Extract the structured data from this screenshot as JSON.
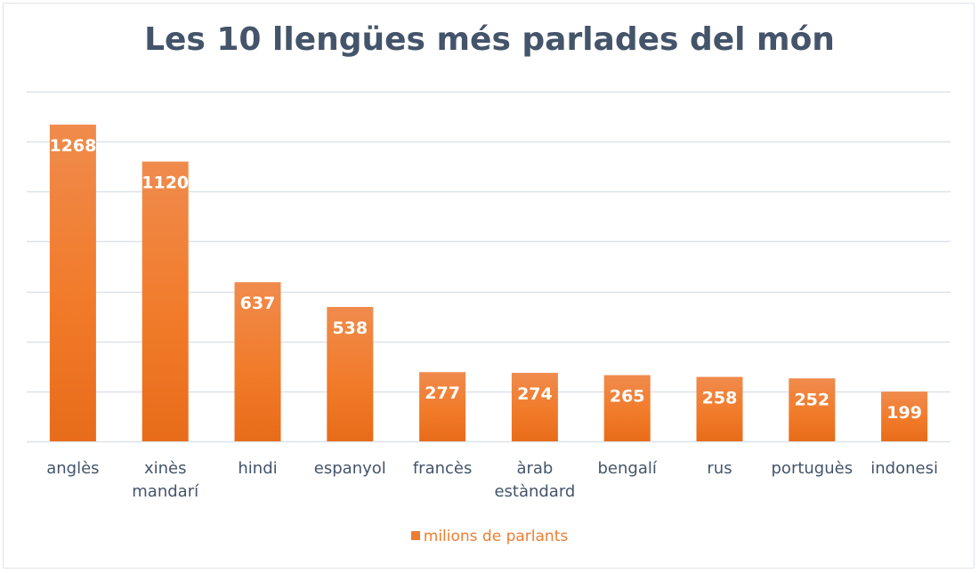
{
  "chart_data": {
    "type": "bar",
    "title": "Les 10 llengües més parlades del món",
    "categories": [
      [
        "anglès"
      ],
      [
        "xinès",
        "mandarí"
      ],
      [
        "hindi"
      ],
      [
        "espanyol"
      ],
      [
        "francès"
      ],
      [
        "àrab",
        "estàndard"
      ],
      [
        "bengalí"
      ],
      [
        "rus"
      ],
      [
        "portuguès"
      ],
      [
        "indonesi"
      ]
    ],
    "series": [
      {
        "name": "milions de parlants",
        "values": [
          1268,
          1120,
          637,
          538,
          277,
          274,
          265,
          258,
          252,
          199
        ],
        "color": "#ed7d31"
      }
    ],
    "xlabel": "",
    "ylabel": "",
    "ylim": [
      0,
      1400
    ],
    "ytick_step": 200,
    "ytick_labels_visible": false,
    "grid": true,
    "data_labels": "inside-end",
    "legend": {
      "position": "bottom",
      "entries": [
        "milions de parlants"
      ]
    }
  },
  "colors": {
    "bar": "#ed7d31",
    "bar_light": "#f08b4d",
    "bar_dark": "#e86f1c",
    "title": "#44546a",
    "category_label": "#44546a",
    "gridline": "#dde2ea",
    "data_label": "#ffffff",
    "legend_text": "#ed7d31"
  }
}
